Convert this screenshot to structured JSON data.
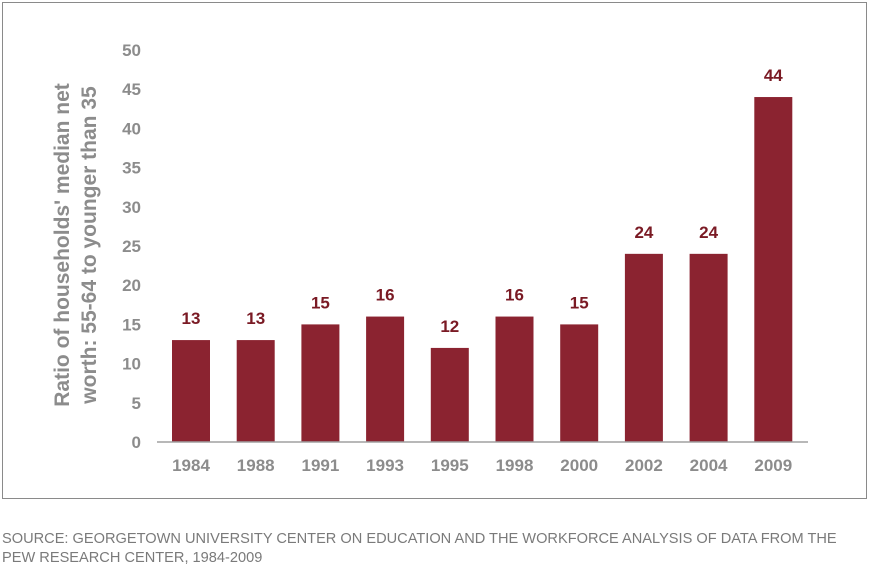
{
  "chart_data": {
    "type": "bar",
    "categories": [
      "1984",
      "1988",
      "1991",
      "1993",
      "1995",
      "1998",
      "2000",
      "2002",
      "2004",
      "2009"
    ],
    "values": [
      13,
      13,
      15,
      16,
      12,
      16,
      15,
      24,
      24,
      44
    ],
    "data_labels": [
      "13",
      "13",
      "15",
      "16",
      "12",
      "16",
      "15",
      "24",
      "24",
      "44"
    ],
    "ylabel_lines": [
      "Ratio of households' median net",
      "worth: 55-64 to younger than 35"
    ],
    "ylim": [
      0,
      50
    ],
    "yticks": [
      0,
      5,
      10,
      15,
      20,
      25,
      30,
      35,
      40,
      45,
      50
    ],
    "grid": false,
    "legend": "none"
  },
  "colors": {
    "bar": "#8b2330",
    "data_label": "#7a1a24",
    "axis_text": "#8c8c8c",
    "axis_line": "#a0a0a0"
  },
  "source_note": "SOURCE: GEORGETOWN UNIVERSITY CENTER ON EDUCATION AND THE WORKFORCE ANALYSIS OF DATA FROM THE PEW RESEARCH CENTER, 1984-2009"
}
